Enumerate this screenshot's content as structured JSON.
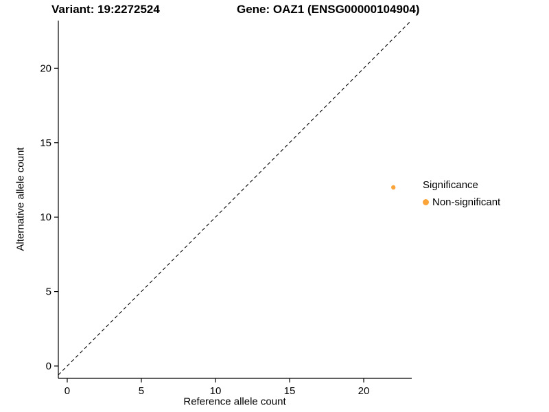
{
  "title": {
    "variant": "Variant: 19:2272524",
    "gene": "Gene: OAZ1 (ENSG00000104904)"
  },
  "chart_data": {
    "type": "scatter",
    "title": "Variant: 19:2272524   Gene: OAZ1 (ENSG00000104904)",
    "xlabel": "Reference allele count",
    "ylabel": "Alternative allele count",
    "xlim": [
      -0.6,
      23.24
    ],
    "ylim": [
      -0.83,
      23.2
    ],
    "x_ticks": [
      0,
      5,
      10,
      15,
      20
    ],
    "y_ticks": [
      0,
      5,
      10,
      15,
      20
    ],
    "grid": false,
    "point_color": "#FAA43A",
    "points": [
      {
        "x": 22,
        "y": 12,
        "series": "Non-significant"
      }
    ],
    "identity_line": {
      "style": "dashed",
      "from": [
        -0.6,
        -0.6
      ],
      "to": [
        23.2,
        23.2
      ],
      "color": "#000000"
    },
    "legend": {
      "title": "Significance",
      "position": "right",
      "entries": [
        {
          "label": "Non-significant",
          "color": "#FAA43A"
        }
      ]
    }
  },
  "colors": {
    "axis": "#000000",
    "text": "#000000",
    "background": "#FFFFFF"
  }
}
